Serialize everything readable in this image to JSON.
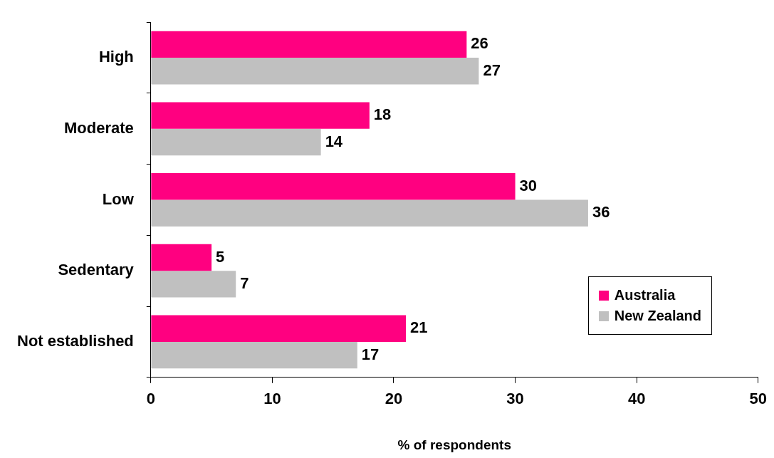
{
  "chart_data": {
    "type": "bar",
    "orientation": "horizontal",
    "xlabel": "% of respondents",
    "categories": [
      "High",
      "Moderate",
      "Low",
      "Sedentary",
      "Not established"
    ],
    "series": [
      {
        "name": "Australia",
        "color": "#ff0080",
        "values": [
          26,
          18,
          30,
          5,
          21
        ]
      },
      {
        "name": "New Zealand",
        "color": "#c0c0c0",
        "values": [
          27,
          14,
          36,
          7,
          17
        ]
      }
    ],
    "xlim": [
      0,
      50
    ],
    "xticks": [
      0,
      10,
      20,
      30,
      40,
      50
    ],
    "grid": false,
    "legend": "bottom right",
    "data_labels": true
  }
}
